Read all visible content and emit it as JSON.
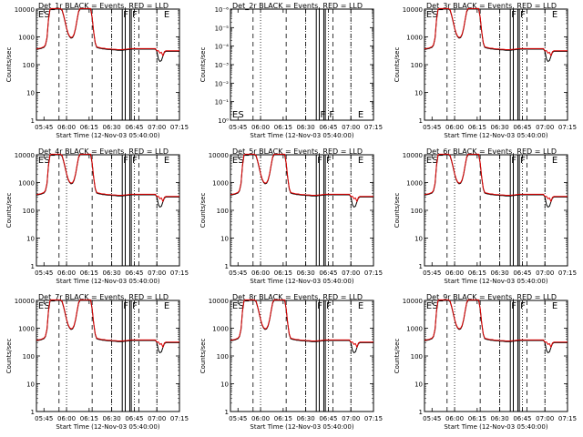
{
  "chart_data": [
    {
      "type": "line",
      "title": "Det_1r BLACK = Events, RED = LLD",
      "xlabel": "Start Time (12-Nov-03 05:40:00)",
      "ylabel": "Counts/sec",
      "ylim": [
        1,
        10000
      ],
      "yscale": "log",
      "xticks": [
        "05:45",
        "06:00",
        "06:15",
        "06:30",
        "06:45",
        "07:00",
        "07:15"
      ],
      "yticks": [
        "1",
        "10",
        "100",
        "1000",
        "10000"
      ],
      "markers": [
        "E",
        "S",
        "F",
        "F",
        "E"
      ],
      "empty": false
    },
    {
      "type": "line",
      "title": "Det_2r BLACK = Events, RED = LLD",
      "xlabel": "Start Time (12-Nov-03 05:40:00)",
      "ylabel": "Counts/sec",
      "ylim": [
        1,
        1e-06
      ],
      "yscale": "log",
      "xticks": [
        "05:45",
        "06:00",
        "06:15",
        "06:30",
        "06:45",
        "07:00",
        "07:15"
      ],
      "yticks": [
        "10⁰",
        "10⁻¹",
        "10⁻²",
        "10⁻³",
        "10⁻⁴",
        "10⁻⁵",
        "10⁻⁶"
      ],
      "markers": [
        "E",
        "S",
        "F",
        "F",
        "E"
      ],
      "empty": true
    },
    {
      "type": "line",
      "title": "Det_3r BLACK = Events, RED = LLD",
      "xlabel": "Start Time (12-Nov-03 05:40:00)",
      "ylabel": "Counts/sec",
      "ylim": [
        1,
        10000
      ],
      "yscale": "log",
      "xticks": [
        "05:45",
        "06:00",
        "06:15",
        "06:30",
        "06:45",
        "07:00",
        "07:15"
      ],
      "yticks": [
        "1",
        "10",
        "100",
        "1000",
        "10000"
      ],
      "markers": [
        "E",
        "S",
        "F",
        "F",
        "E"
      ],
      "empty": false
    },
    {
      "type": "line",
      "title": "Det_4r BLACK = Events, RED = LLD",
      "xlabel": "Start Time (12-Nov-03 05:40:00)",
      "ylabel": "Counts/sec",
      "ylim": [
        1,
        10000
      ],
      "yscale": "log",
      "xticks": [
        "05:45",
        "06:00",
        "06:15",
        "06:30",
        "06:45",
        "07:00",
        "07:15"
      ],
      "yticks": [
        "1",
        "10",
        "100",
        "1000",
        "10000"
      ],
      "markers": [
        "E",
        "S",
        "F",
        "F",
        "E"
      ],
      "empty": false
    },
    {
      "type": "line",
      "title": "Det_5r BLACK = Events, RED = LLD",
      "xlabel": "Start Time (12-Nov-03 05:40:00)",
      "ylabel": "Counts/sec",
      "ylim": [
        1,
        10000
      ],
      "yscale": "log",
      "xticks": [
        "05:45",
        "06:00",
        "06:15",
        "06:30",
        "06:45",
        "07:00",
        "07:15"
      ],
      "yticks": [
        "1",
        "10",
        "100",
        "1000",
        "10000"
      ],
      "markers": [
        "E",
        "S",
        "F",
        "F",
        "E"
      ],
      "empty": false
    },
    {
      "type": "line",
      "title": "Det_6r BLACK = Events, RED = LLD",
      "xlabel": "Start Time (12-Nov-03 05:40:00)",
      "ylabel": "Counts/sec",
      "ylim": [
        1,
        10000
      ],
      "yscale": "log",
      "xticks": [
        "05:45",
        "06:00",
        "06:15",
        "06:30",
        "06:45",
        "07:00",
        "07:15"
      ],
      "yticks": [
        "1",
        "10",
        "100",
        "1000",
        "10000"
      ],
      "markers": [
        "E",
        "S",
        "F",
        "F",
        "E"
      ],
      "empty": false
    },
    {
      "type": "line",
      "title": "Det_7r BLACK = Events, RED = LLD",
      "xlabel": "Start Time (12-Nov-03 05:40:00)",
      "ylabel": "Counts/sec",
      "ylim": [
        1,
        10000
      ],
      "yscale": "log",
      "xticks": [
        "05:45",
        "06:00",
        "06:15",
        "06:30",
        "06:45",
        "07:00",
        "07:15"
      ],
      "yticks": [
        "1",
        "10",
        "100",
        "1000",
        "10000"
      ],
      "markers": [
        "E",
        "S",
        "F",
        "F",
        "E"
      ],
      "empty": false
    },
    {
      "type": "line",
      "title": "Det_8r BLACK = Events, RED = LLD",
      "xlabel": "Start Time (12-Nov-03 05:40:00)",
      "ylabel": "Counts/sec",
      "ylim": [
        1,
        10000
      ],
      "yscale": "log",
      "xticks": [
        "05:45",
        "06:00",
        "06:15",
        "06:30",
        "06:45",
        "07:00",
        "07:15"
      ],
      "yticks": [
        "1",
        "10",
        "100",
        "1000",
        "10000"
      ],
      "markers": [
        "E",
        "S",
        "F",
        "F",
        "E"
      ],
      "empty": false
    },
    {
      "type": "line",
      "title": "Det_9r BLACK = Events, RED = LLD",
      "xlabel": "Start Time (12-Nov-03 05:40:00)",
      "ylabel": "Counts/sec",
      "ylim": [
        1,
        10000
      ],
      "yscale": "log",
      "xticks": [
        "05:45",
        "06:00",
        "06:15",
        "06:30",
        "06:45",
        "07:00",
        "07:15"
      ],
      "yticks": [
        "1",
        "10",
        "100",
        "1000",
        "10000"
      ],
      "markers": [
        "E",
        "S",
        "F",
        "F",
        "E"
      ],
      "empty": false
    }
  ],
  "series_data": {
    "time_minutes": [
      0,
      3,
      5,
      6,
      7,
      8,
      9,
      10,
      11,
      12,
      13,
      14,
      15,
      16,
      17,
      18,
      19,
      20,
      21,
      22,
      23,
      24,
      25,
      26,
      27,
      28,
      29,
      30,
      31,
      32,
      33,
      34,
      35,
      36,
      37,
      38,
      39,
      40,
      41,
      42,
      43,
      44,
      45,
      46,
      47,
      48,
      49,
      50,
      51,
      52,
      53,
      54,
      55,
      56,
      57,
      58,
      59,
      60,
      61,
      62,
      63,
      64,
      65,
      66,
      67,
      68,
      69,
      70,
      71,
      72,
      73,
      74,
      75,
      76,
      77,
      78,
      79,
      80,
      81,
      82,
      83,
      84,
      85,
      86,
      87,
      88,
      89,
      90,
      91,
      92,
      93,
      94,
      95
    ],
    "counts": [
      350,
      380,
      420,
      500,
      900,
      4000,
      9500,
      10000,
      10000,
      10000,
      10000,
      10000,
      10000,
      10000,
      9000,
      6000,
      3500,
      2000,
      1300,
      1000,
      900,
      950,
      1200,
      2000,
      4000,
      8000,
      10000,
      10000,
      10000,
      10000,
      10000,
      10000,
      10000,
      10000,
      5000,
      1500,
      600,
      420,
      400,
      390,
      380,
      370,
      370,
      360,
      355,
      350,
      350,
      345,
      340,
      340,
      335,
      330,
      330,
      330,
      330,
      335,
      340,
      345,
      350,
      355,
      360,
      360,
      360,
      360,
      360,
      360,
      360,
      360,
      360,
      360,
      360,
      360,
      360,
      360,
      360,
      360,
      360,
      300,
      160,
      130,
      140,
      200,
      280,
      300,
      300,
      300,
      300,
      300,
      300,
      300,
      300,
      300,
      300,
      300,
      300
    ],
    "time_range": [
      0,
      95
    ],
    "tick_minutes": [
      5,
      20,
      35,
      50,
      65,
      80,
      95
    ],
    "dotted_minutes": [
      20,
      50,
      65,
      80
    ],
    "dashed_minutes": [
      15,
      37,
      50,
      68,
      80
    ],
    "solid_minutes": [
      57,
      59,
      62,
      63
    ]
  }
}
